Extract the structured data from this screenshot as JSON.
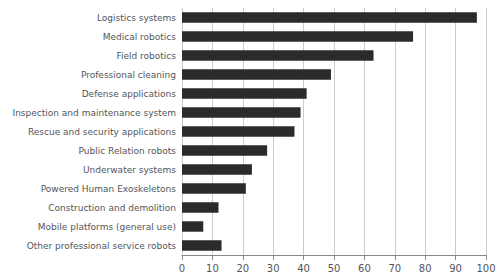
{
  "chart_data": {
    "type": "bar",
    "orientation": "horizontal",
    "categories": [
      "Other professional service robots",
      "Mobile platforms (general use)",
      "Construction and demolition",
      "Powered Human Exoskeletons",
      "Underwater systems",
      "Public Relation robots",
      "Rescue and security applications",
      "Inspection and maintenance system",
      "Defense applications",
      "Professional cleaning",
      "Field robotics",
      "Medical robotics",
      "Logistics systems"
    ],
    "values": [
      13,
      7,
      12,
      21,
      23,
      28,
      37,
      39,
      41,
      49,
      63,
      76,
      97
    ],
    "color": "#2b2b2b",
    "xlim": [
      0,
      100
    ],
    "xticks": [
      0,
      10,
      20,
      30,
      40,
      50,
      60,
      70,
      80,
      90,
      100
    ],
    "grid": true
  }
}
